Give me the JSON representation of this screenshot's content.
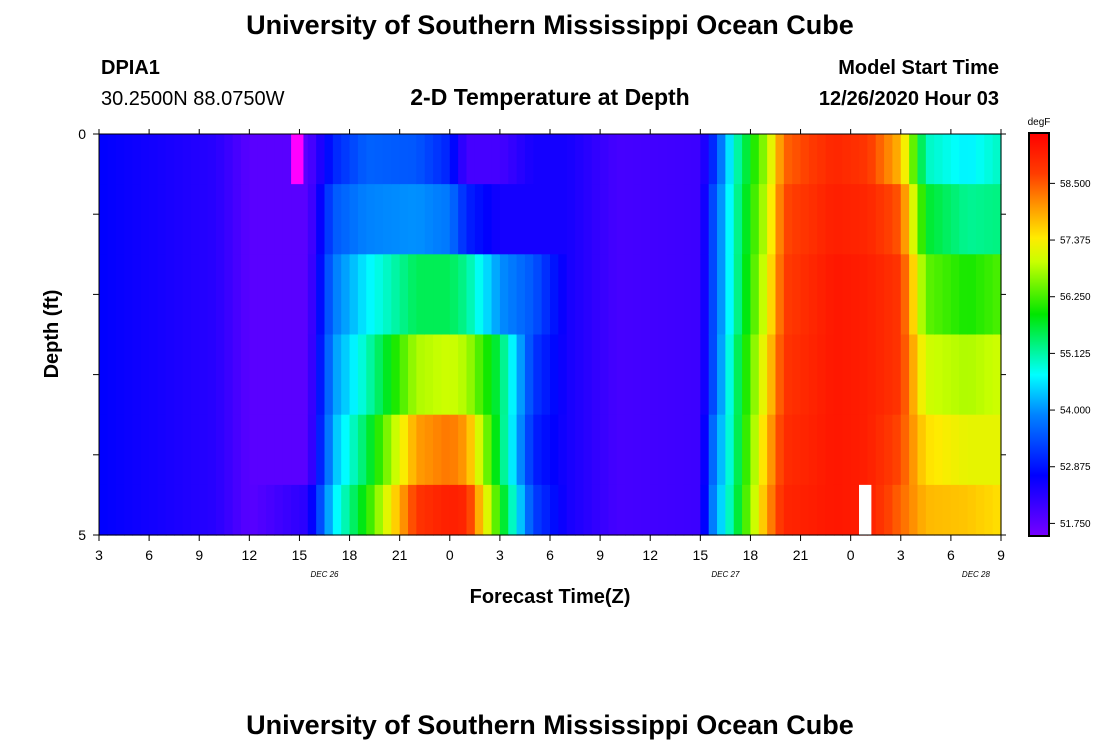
{
  "header": {
    "title_top": "University of Southern Mississippi Ocean Cube",
    "title_bottom": "University of Southern Mississippi Ocean Cube",
    "station_id": "DPIA1",
    "station_coords": "30.2500N 88.0750W",
    "plot_title": "2-D Temperature at Depth",
    "model_start_label": "Model Start Time",
    "model_start_value": "12/26/2020 Hour 03"
  },
  "chart_data": {
    "type": "heatmap",
    "title": "2-D Temperature at Depth",
    "xlabel": "Forecast Time(Z)",
    "ylabel": "Depth (ft)",
    "colorbar_unit": "degF",
    "x_tick_labels": [
      "3",
      "6",
      "9",
      "12",
      "15",
      "18",
      "21",
      "0",
      "3",
      "6",
      "9",
      "12",
      "15",
      "18",
      "21",
      "0",
      "3",
      "6",
      "9"
    ],
    "date_labels": [
      {
        "text": "DEC 26",
        "after_tick": 4
      },
      {
        "text": "DEC 27",
        "after_tick": 12
      },
      {
        "text": "DEC 28",
        "after_tick": 17
      }
    ],
    "y_tick_labels": [
      {
        "value": 0,
        "label": "0"
      },
      {
        "value": 5,
        "label": "5"
      }
    ],
    "ylim": [
      0,
      5
    ],
    "x_range_hours": [
      3,
      57
    ],
    "depth_levels": [
      0.25,
      1,
      2,
      3,
      4,
      4.75
    ],
    "colorbar_ticks": [
      "51.750",
      "52.875",
      "54.000",
      "55.125",
      "56.250",
      "57.375",
      "58.500"
    ],
    "color_range": [
      51.5,
      59.5
    ],
    "temperature_keyframes": [
      {
        "hour": 3,
        "temps": [
          52.7,
          52.7,
          52.7,
          52.7,
          52.7,
          52.7
        ]
      },
      {
        "hour": 10,
        "temps": [
          52.3,
          52.3,
          52.3,
          52.3,
          52.3,
          52.3
        ]
      },
      {
        "hour": 12,
        "temps": [
          51.8,
          51.8,
          51.8,
          51.8,
          51.8,
          51.8
        ]
      },
      {
        "hour": 15.5,
        "temps": [
          51.8,
          51.8,
          51.8,
          51.8,
          51.8,
          52.3
        ]
      },
      {
        "hour": 17,
        "temps": [
          53.0,
          53.5,
          53.8,
          54.0,
          54.2,
          54.5
        ]
      },
      {
        "hour": 19,
        "temps": [
          53.6,
          53.9,
          54.6,
          55.0,
          55.5,
          56.0
        ]
      },
      {
        "hour": 22,
        "temps": [
          53.5,
          54.0,
          55.5,
          56.8,
          58.0,
          58.8
        ]
      },
      {
        "hour": 24,
        "temps": [
          53.0,
          53.8,
          55.5,
          57.0,
          58.3,
          59.1
        ]
      },
      {
        "hour": 25,
        "temps": [
          52.0,
          53.0,
          55.2,
          56.8,
          58.0,
          59.0
        ]
      },
      {
        "hour": 27,
        "temps": [
          52.0,
          52.5,
          54.0,
          55.5,
          55.5,
          56.0
        ]
      },
      {
        "hour": 29,
        "temps": [
          52.5,
          52.5,
          53.5,
          53.2,
          53.0,
          53.3
        ]
      },
      {
        "hour": 31,
        "temps": [
          52.5,
          52.5,
          52.5,
          52.5,
          52.5,
          52.5
        ]
      },
      {
        "hour": 34,
        "temps": [
          52.0,
          52.0,
          52.0,
          52.0,
          52.0,
          52.0
        ]
      },
      {
        "hour": 39,
        "temps": [
          52.1,
          52.1,
          52.1,
          52.1,
          52.1,
          52.1
        ]
      },
      {
        "hour": 39.7,
        "temps": [
          53.0,
          53.3,
          53.3,
          53.3,
          53.6,
          53.8
        ]
      },
      {
        "hour": 41,
        "temps": [
          54.9,
          55.0,
          55.0,
          55.2,
          55.2,
          55.3
        ]
      },
      {
        "hour": 43,
        "temps": [
          56.8,
          57.0,
          57.2,
          57.5,
          57.8,
          58.0
        ]
      },
      {
        "hour": 44,
        "temps": [
          58.4,
          58.6,
          58.7,
          58.8,
          58.9,
          59.0
        ]
      },
      {
        "hour": 47,
        "temps": [
          59.0,
          59.1,
          59.2,
          59.2,
          59.2,
          59.2
        ]
      },
      {
        "hour": 49,
        "temps": [
          58.8,
          59.0,
          59.1,
          59.1,
          59.1,
          59.1
        ]
      },
      {
        "hour": 51,
        "temps": [
          57.8,
          58.5,
          58.8,
          58.8,
          58.6,
          58.4
        ]
      },
      {
        "hour": 52.5,
        "temps": [
          55.0,
          55.7,
          56.4,
          57.0,
          57.5,
          57.8
        ]
      },
      {
        "hour": 55,
        "temps": [
          54.6,
          55.2,
          56.0,
          56.8,
          57.2,
          57.7
        ]
      },
      {
        "hour": 57,
        "temps": [
          55.0,
          55.3,
          56.3,
          57.0,
          57.2,
          57.5
        ]
      }
    ],
    "highlight_cells": [
      {
        "hour": 14.5,
        "depth_level": 0,
        "color": "#ff00ff"
      },
      {
        "hour": 48.5,
        "depth_level": 5,
        "color": "#ffffff"
      }
    ]
  }
}
